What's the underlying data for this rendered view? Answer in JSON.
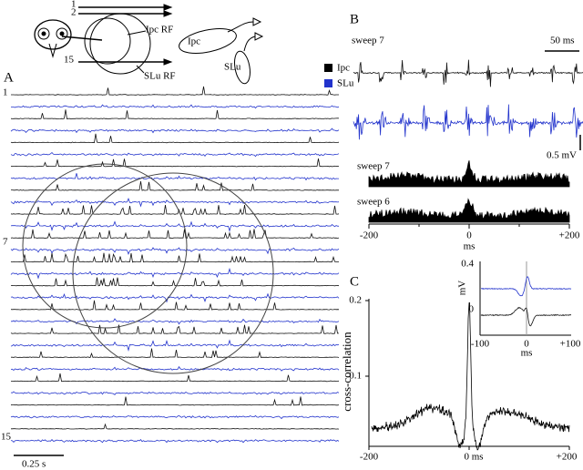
{
  "schematic": {
    "electrode_labels": [
      "1",
      "2",
      "15"
    ],
    "ipc_rf": "Ipc RF",
    "slu_rf": "SLu RF",
    "neuron_ipc": "Ipc",
    "neuron_slu": "SLu"
  },
  "panel_a": {
    "letter": "A",
    "legend": [
      "Ipc",
      "SLu"
    ],
    "row_labels": [
      "1",
      "7",
      "15"
    ],
    "scale": "0.25 s"
  },
  "panel_b": {
    "letter": "B",
    "trace_label": "sweep 7",
    "time_scale": "50 ms",
    "voltage_scale": "0.5 mV",
    "hist_labels": [
      "sweep 7",
      "sweep 6"
    ],
    "x_ticks": [
      "-200",
      "0",
      "+200"
    ],
    "x_unit": "ms"
  },
  "panel_c": {
    "letter": "C",
    "y_ticks": [
      "0.2",
      "0.1"
    ],
    "y_label": "cross-correlation",
    "x_ticks": [
      "-200",
      "0 ms",
      "+200"
    ],
    "inset": {
      "y_ticks": [
        "0.4",
        "0"
      ],
      "y_unit": "mV",
      "x_ticks": [
        "-100",
        "0",
        "+100"
      ],
      "x_unit": "ms"
    }
  }
}
